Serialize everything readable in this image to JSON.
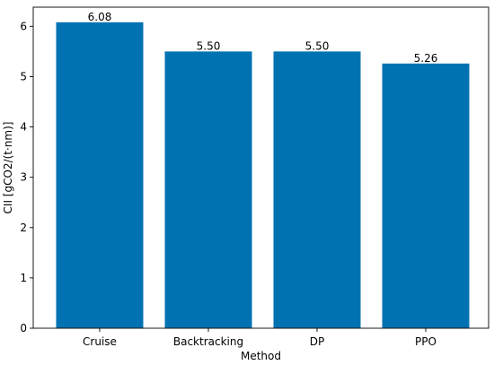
{
  "chart_data": {
    "type": "bar",
    "categories": [
      "Cruise",
      "Backtracking",
      "DP",
      "PPO"
    ],
    "values": [
      6.08,
      5.5,
      5.5,
      5.26
    ],
    "value_labels": [
      "6.08",
      "5.50",
      "5.50",
      "5.26"
    ],
    "xlabel": "Method",
    "ylabel": "CII [gCO2/(t·nm)]",
    "ylim": [
      0,
      6.38
    ],
    "yticks": [
      0,
      1,
      2,
      3,
      4,
      5,
      6
    ],
    "ytick_labels": [
      "0",
      "1",
      "2",
      "3",
      "4",
      "5",
      "6"
    ],
    "grid": false,
    "legend": "none",
    "bar_color": "#0072b2"
  }
}
